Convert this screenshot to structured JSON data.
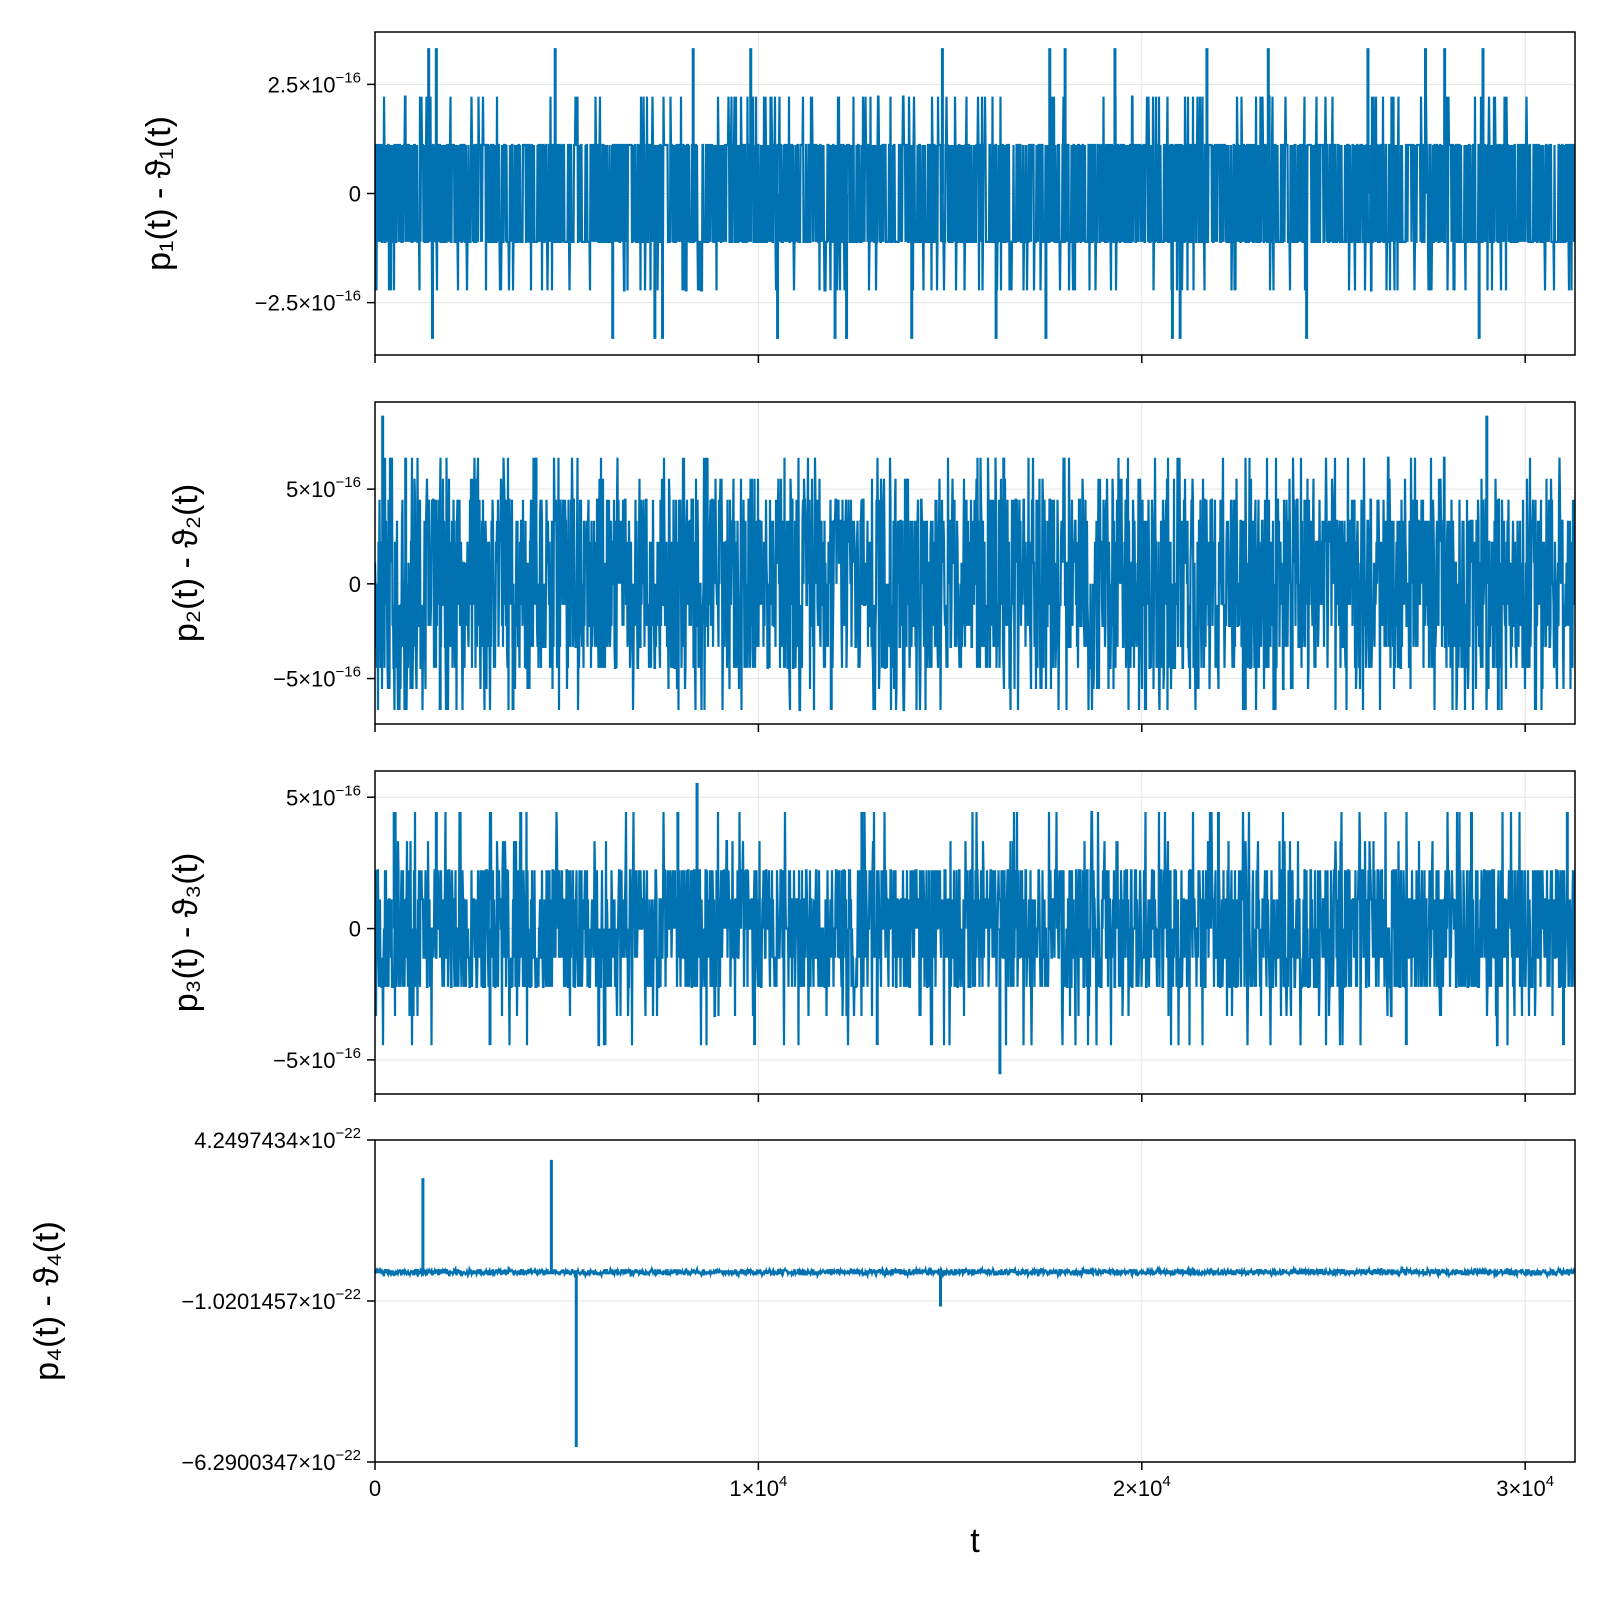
{
  "chart_data": [
    {
      "type": "line",
      "ylabel": "p₁(t) - ϑ₁(t)",
      "xlim": [
        0,
        31300
      ],
      "ylim": [
        -3.7e-16,
        3.7e-16
      ],
      "yticks": [
        {
          "value": 2.5e-16,
          "mantissa": "2.5×10",
          "exp": "−16"
        },
        {
          "value": 0,
          "mantissa": "0",
          "exp": ""
        },
        {
          "value": -2.5e-16,
          "mantissa": "−2.5×10",
          "exp": "−16"
        }
      ],
      "show_xtick_labels": false,
      "noise": {
        "seed": 11,
        "levels": [
          1.11e-16,
          -1.11e-16
        ],
        "band": [
          -1.11e-16,
          1.11e-16
        ],
        "outer_levels": [
          2.22e-16,
          -2.22e-16
        ],
        "outer_prob": 0.09
      },
      "spikes": [
        {
          "x": 1400,
          "y": 3.33e-16
        },
        {
          "x": 1600,
          "y": 3.33e-16
        },
        {
          "x": 4700,
          "y": 3.33e-16
        },
        {
          "x": 8300,
          "y": 3.33e-16
        },
        {
          "x": 9800,
          "y": 3.33e-16
        },
        {
          "x": 14800,
          "y": 3.33e-16
        },
        {
          "x": 17600,
          "y": 3.33e-16
        },
        {
          "x": 18000,
          "y": 3.33e-16
        },
        {
          "x": 19300,
          "y": 3.33e-16
        },
        {
          "x": 21700,
          "y": 3.33e-16
        },
        {
          "x": 23300,
          "y": 3.33e-16
        },
        {
          "x": 25900,
          "y": 3.33e-16
        },
        {
          "x": 27400,
          "y": 3.33e-16
        },
        {
          "x": 27900,
          "y": 3.33e-16
        },
        {
          "x": 28900,
          "y": 3.33e-16
        },
        {
          "x": 1500,
          "y": -3.33e-16
        },
        {
          "x": 6200,
          "y": -3.33e-16
        },
        {
          "x": 7300,
          "y": -3.33e-16
        },
        {
          "x": 7500,
          "y": -3.33e-16
        },
        {
          "x": 10500,
          "y": -3.33e-16
        },
        {
          "x": 12000,
          "y": -3.33e-16
        },
        {
          "x": 12300,
          "y": -3.33e-16
        },
        {
          "x": 14000,
          "y": -3.33e-16
        },
        {
          "x": 16200,
          "y": -3.33e-16
        },
        {
          "x": 17500,
          "y": -3.33e-16
        },
        {
          "x": 20800,
          "y": -3.33e-16
        },
        {
          "x": 21000,
          "y": -3.33e-16
        },
        {
          "x": 24300,
          "y": -3.33e-16
        },
        {
          "x": 28800,
          "y": -3.33e-16
        }
      ],
      "color": "#0072b2"
    },
    {
      "type": "line",
      "ylabel": "p₂(t) - ϑ₂(t)",
      "xlim": [
        0,
        31300
      ],
      "ylim": [
        -7.4e-16,
        9.6e-16
      ],
      "yticks": [
        {
          "value": 5e-16,
          "mantissa": "5×10",
          "exp": "−16"
        },
        {
          "value": 0,
          "mantissa": "0",
          "exp": ""
        },
        {
          "value": -5e-16,
          "mantissa": "−5×10",
          "exp": "−16"
        }
      ],
      "show_xtick_labels": false,
      "noise": {
        "seed": 23,
        "levels": [
          4.44e-16,
          3.33e-16,
          2.22e-16,
          1.11e-16,
          0,
          -1.11e-16,
          -2.22e-16,
          -3.33e-16,
          -4.44e-16
        ],
        "band": [
          -4.44e-16,
          4.44e-16
        ],
        "outer_levels": [
          5.55e-16,
          -5.55e-16,
          6.66e-16,
          -6.66e-16
        ],
        "outer_prob": 0.12
      },
      "spikes": [
        {
          "x": 200,
          "y": 8.88e-16
        },
        {
          "x": 29000,
          "y": 8.88e-16
        },
        {
          "x": 800,
          "y": 6.66e-16
        },
        {
          "x": 4200,
          "y": 6.66e-16
        },
        {
          "x": 16400,
          "y": 6.66e-16
        },
        {
          "x": 1700,
          "y": -6.66e-16
        },
        {
          "x": 3600,
          "y": -6.66e-16
        },
        {
          "x": 11900,
          "y": -6.66e-16
        },
        {
          "x": 22700,
          "y": -6.66e-16
        },
        {
          "x": 29300,
          "y": -6.66e-16
        }
      ],
      "color": "#0072b2"
    },
    {
      "type": "line",
      "ylabel": "p₃(t) - ϑ₃(t)",
      "xlim": [
        0,
        31300
      ],
      "ylim": [
        -6.3e-16,
        6e-16
      ],
      "yticks": [
        {
          "value": 5e-16,
          "mantissa": "5×10",
          "exp": "−16"
        },
        {
          "value": 0,
          "mantissa": "0",
          "exp": ""
        },
        {
          "value": -5e-16,
          "mantissa": "−5×10",
          "exp": "−16"
        }
      ],
      "show_xtick_labels": false,
      "noise": {
        "seed": 37,
        "levels": [
          2.22e-16,
          1.11e-16,
          0,
          -1.11e-16,
          -2.22e-16
        ],
        "band": [
          -2.22e-16,
          2.22e-16
        ],
        "outer_levels": [
          3.33e-16,
          -3.33e-16,
          4.44e-16,
          -4.44e-16
        ],
        "outer_prob": 0.08
      },
      "spikes": [
        {
          "x": 8400,
          "y": 5.55e-16
        },
        {
          "x": 16300,
          "y": -5.55e-16
        },
        {
          "x": 500,
          "y": 4.44e-16
        },
        {
          "x": 1600,
          "y": 4.44e-16
        },
        {
          "x": 3800,
          "y": 4.44e-16
        },
        {
          "x": 7900,
          "y": 4.44e-16
        },
        {
          "x": 12700,
          "y": 4.44e-16
        },
        {
          "x": 22000,
          "y": 4.44e-16
        },
        {
          "x": 28600,
          "y": 4.44e-16
        },
        {
          "x": 31100,
          "y": 4.44e-16
        },
        {
          "x": 3000,
          "y": -4.44e-16
        },
        {
          "x": 6000,
          "y": -4.44e-16
        },
        {
          "x": 9900,
          "y": -4.44e-16
        },
        {
          "x": 13100,
          "y": -4.44e-16
        },
        {
          "x": 26900,
          "y": -4.44e-16
        },
        {
          "x": 31000,
          "y": -4.44e-16
        }
      ],
      "color": "#0072b2"
    },
    {
      "type": "line",
      "ylabel": "p₄(t) - ϑ₄(t)",
      "xlabel": "t",
      "xlim": [
        0,
        31300
      ],
      "ylim": [
        -6.2900347e-22,
        4.2497434e-22
      ],
      "yticks": [
        {
          "value": 4.2497434e-22,
          "mantissa": "4.2497434×10",
          "exp": "−22"
        },
        {
          "value": -1.0201457e-22,
          "mantissa": "−1.0201457×10",
          "exp": "−22"
        },
        {
          "value": -6.2900347e-22,
          "mantissa": "−6.2900347×10",
          "exp": "−22"
        }
      ],
      "show_xtick_labels": true,
      "xticks": [
        {
          "value": 0,
          "mantissa": "0",
          "exp": ""
        },
        {
          "value": 10000,
          "mantissa": "1×10",
          "exp": "4"
        },
        {
          "value": 20000,
          "mantissa": "2×10",
          "exp": "4"
        },
        {
          "value": 30000,
          "mantissa": "3×10",
          "exp": "4"
        }
      ],
      "noise": {
        "seed": 53,
        "levels": [
          -2e-24,
          -5e-24,
          -8e-24,
          -1.1e-23,
          -1.4e-23
        ],
        "band": [
          -1.4e-23,
          -2e-24
        ],
        "outer_levels": [
          2e-24,
          -1.8e-23
        ],
        "outer_prob": 0.1
      },
      "spikes": [
        {
          "x": 1250,
          "y": 3e-22
        },
        {
          "x": 4600,
          "y": 3.6e-22
        },
        {
          "x": 5250,
          "y": -5.8e-22
        },
        {
          "x": 14750,
          "y": -1.2e-22
        }
      ],
      "color": "#0072b2"
    }
  ]
}
